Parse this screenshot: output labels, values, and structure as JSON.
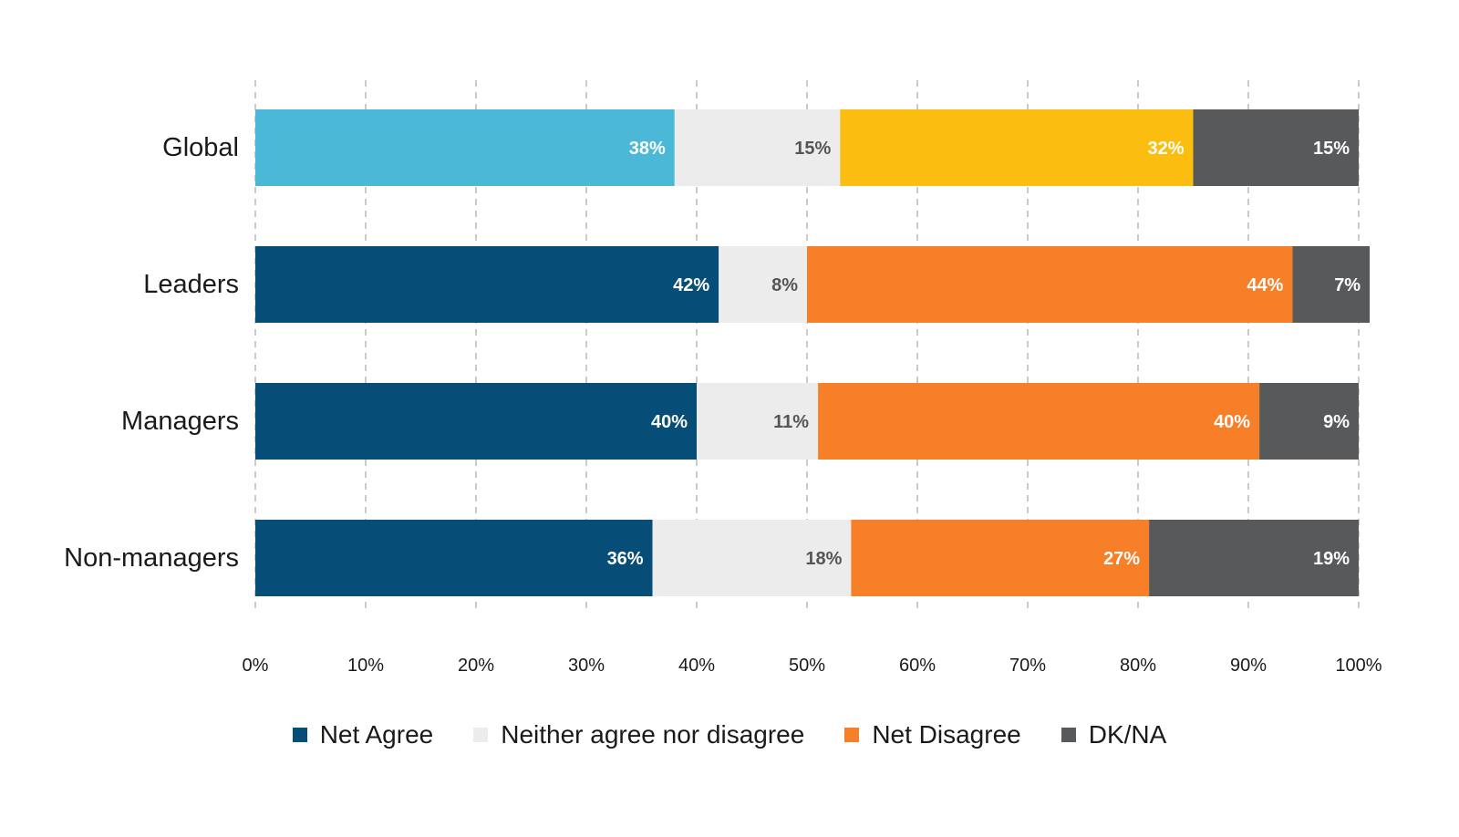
{
  "chart_data": {
    "type": "bar",
    "orientation": "horizontal",
    "stacked": true,
    "categories": [
      "Global",
      "Leaders",
      "Managers",
      "Non-managers"
    ],
    "series": [
      {
        "name": "Net Agree",
        "values": [
          38,
          42,
          40,
          36
        ],
        "labels": [
          "38%",
          "42%",
          "40%",
          "36%"
        ],
        "color": "#064d78",
        "global_color": "#4ab8d6",
        "label_color": "#ffffff"
      },
      {
        "name": "Neither agree nor disagree",
        "values": [
          15,
          8,
          11,
          18
        ],
        "labels": [
          "15%",
          "8%",
          "11%",
          "18%"
        ],
        "color": "#ececec",
        "global_color": "#ececec",
        "label_color": "#555555"
      },
      {
        "name": "Net Disagree",
        "values": [
          32,
          44,
          40,
          27
        ],
        "labels": [
          "32%",
          "44%",
          "40%",
          "27%"
        ],
        "color": "#f77f27",
        "global_color": "#fbbd10",
        "label_color": "#ffffff"
      },
      {
        "name": "DK/NA",
        "values": [
          15,
          7,
          9,
          19
        ],
        "labels": [
          "15%",
          "7%",
          "9%",
          "19%"
        ],
        "color": "#58595b",
        "global_color": "#58595b",
        "label_color": "#ffffff"
      }
    ],
    "x_ticks": [
      "0%",
      "10%",
      "20%",
      "30%",
      "40%",
      "50%",
      "60%",
      "70%",
      "80%",
      "90%",
      "100%"
    ],
    "xlim": [
      0,
      100
    ],
    "grid": "vertical-dashed",
    "legend_position": "bottom"
  }
}
